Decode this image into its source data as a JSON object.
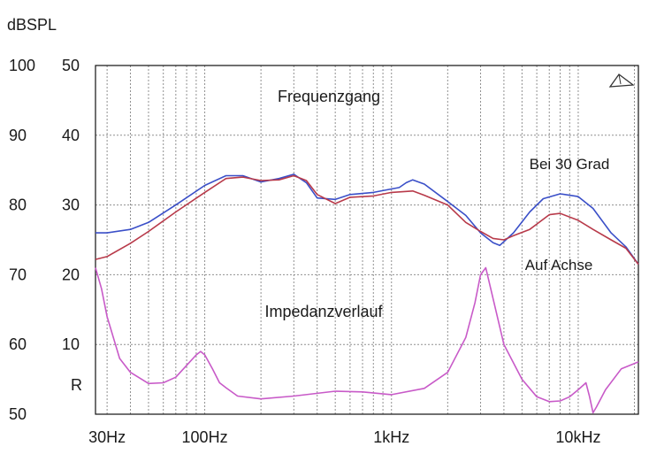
{
  "chart_data": {
    "type": "line",
    "y_axis_title": "dBSPL",
    "x_scale": "log",
    "x_range": [
      26,
      21000
    ],
    "y_range_spl": [
      50,
      100
    ],
    "y_range_impedance": [
      0,
      50
    ],
    "x_ticks": [
      {
        "value": 30,
        "label": "30Hz"
      },
      {
        "value": 100,
        "label": "100Hz"
      },
      {
        "value": 1000,
        "label": "1kHz"
      },
      {
        "value": 10000,
        "label": "10kHz"
      }
    ],
    "y_ticks_spl": [
      "100",
      "90",
      "80",
      "70",
      "60",
      "50"
    ],
    "y_ticks_impedance": [
      "50",
      "40",
      "30",
      "20",
      "10"
    ],
    "impedance_axis_label": "R",
    "grid": true,
    "annotations": {
      "freq_response": "Frequenzgang",
      "off_axis": "Bei 30 Grad",
      "on_axis": "Auf Achse",
      "impedance": "Impedanzverlauf"
    },
    "series": [
      {
        "label": "Bei 30 Grad",
        "unit": "dB SPL",
        "color": "#3a4fc8",
        "points": [
          [
            26,
            76
          ],
          [
            30,
            76
          ],
          [
            40,
            76.5
          ],
          [
            50,
            77.5
          ],
          [
            70,
            80
          ],
          [
            100,
            82.8
          ],
          [
            130,
            84.2
          ],
          [
            160,
            84.2
          ],
          [
            200,
            83.3
          ],
          [
            250,
            83.8
          ],
          [
            300,
            84.4
          ],
          [
            350,
            83.2
          ],
          [
            400,
            81
          ],
          [
            500,
            80.8
          ],
          [
            600,
            81.5
          ],
          [
            800,
            81.8
          ],
          [
            1000,
            82.3
          ],
          [
            1100,
            82.5
          ],
          [
            1200,
            83.2
          ],
          [
            1300,
            83.6
          ],
          [
            1500,
            83
          ],
          [
            2000,
            80.5
          ],
          [
            2500,
            78.5
          ],
          [
            3000,
            76
          ],
          [
            3500,
            74.6
          ],
          [
            3800,
            74.2
          ],
          [
            4500,
            76
          ],
          [
            5500,
            79
          ],
          [
            6500,
            80.9
          ],
          [
            8000,
            81.6
          ],
          [
            10000,
            81.2
          ],
          [
            12000,
            79.5
          ],
          [
            15000,
            76
          ],
          [
            18000,
            74
          ],
          [
            21000,
            71.5
          ]
        ]
      },
      {
        "label": "Auf Achse",
        "unit": "dB SPL",
        "color": "#b83a4a",
        "points": [
          [
            26,
            72.2
          ],
          [
            30,
            72.6
          ],
          [
            40,
            74.5
          ],
          [
            50,
            76.2
          ],
          [
            70,
            79
          ],
          [
            100,
            81.8
          ],
          [
            130,
            83.8
          ],
          [
            160,
            84
          ],
          [
            200,
            83.5
          ],
          [
            250,
            83.6
          ],
          [
            300,
            84.2
          ],
          [
            350,
            83.5
          ],
          [
            400,
            81.5
          ],
          [
            500,
            80.2
          ],
          [
            600,
            81.1
          ],
          [
            800,
            81.3
          ],
          [
            1000,
            81.8
          ],
          [
            1300,
            82
          ],
          [
            1500,
            81.4
          ],
          [
            2000,
            80
          ],
          [
            2500,
            77.5
          ],
          [
            3000,
            76.2
          ],
          [
            3500,
            75.2
          ],
          [
            4000,
            75
          ],
          [
            4500,
            75.6
          ],
          [
            5500,
            76.5
          ],
          [
            7000,
            78.6
          ],
          [
            8000,
            78.8
          ],
          [
            10000,
            77.8
          ],
          [
            12000,
            76.5
          ],
          [
            15000,
            75
          ],
          [
            18000,
            73.8
          ],
          [
            21000,
            71.5
          ]
        ]
      },
      {
        "label": "Impedanzverlauf",
        "unit": "Ohm",
        "color": "#c85ac8",
        "points": [
          [
            26,
            21
          ],
          [
            28,
            18
          ],
          [
            30,
            14
          ],
          [
            35,
            8
          ],
          [
            40,
            6
          ],
          [
            50,
            4.4
          ],
          [
            60,
            4.5
          ],
          [
            70,
            5.3
          ],
          [
            80,
            7
          ],
          [
            90,
            8.5
          ],
          [
            95,
            9
          ],
          [
            100,
            8.5
          ],
          [
            110,
            6.5
          ],
          [
            120,
            4.5
          ],
          [
            130,
            3.8
          ],
          [
            150,
            2.6
          ],
          [
            200,
            2.2
          ],
          [
            300,
            2.6
          ],
          [
            500,
            3.3
          ],
          [
            700,
            3.2
          ],
          [
            1000,
            2.8
          ],
          [
            1500,
            3.7
          ],
          [
            2000,
            6
          ],
          [
            2500,
            11
          ],
          [
            2800,
            16
          ],
          [
            3000,
            20
          ],
          [
            3200,
            21
          ],
          [
            3400,
            18
          ],
          [
            4000,
            10
          ],
          [
            5000,
            5
          ],
          [
            6000,
            2.5
          ],
          [
            7000,
            1.8
          ],
          [
            8000,
            1.9
          ],
          [
            9000,
            2.5
          ],
          [
            10000,
            3.5
          ],
          [
            11000,
            4.5
          ],
          [
            11500,
            2.5
          ],
          [
            12000,
            0.2
          ],
          [
            12500,
            1
          ],
          [
            14000,
            3.5
          ],
          [
            17000,
            6.5
          ],
          [
            21000,
            7.5
          ]
        ]
      }
    ]
  }
}
